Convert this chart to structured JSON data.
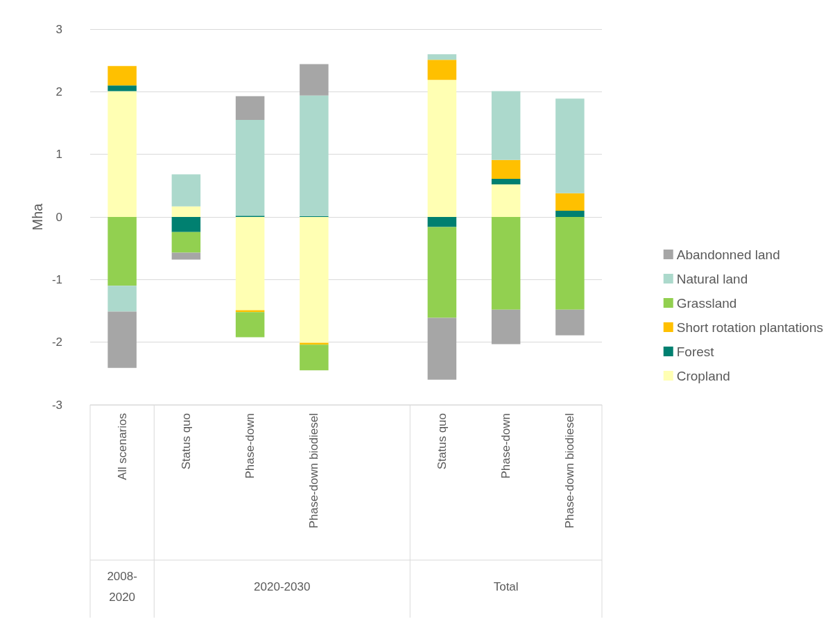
{
  "chart_data": {
    "type": "bar",
    "stacked": true,
    "ylabel": "Mha",
    "categories": [
      "All scenarios",
      "Status quo",
      "Phase-down",
      "Phase-down biodiesel",
      null,
      "Status quo",
      "Phase-down",
      "Phase-down biodiesel"
    ],
    "series": [
      {
        "name": "Cropland",
        "color": "#ffffb3",
        "values": [
          2.01,
          0.17,
          -1.49,
          -2.01,
          null,
          2.19,
          0.52,
          0
        ]
      },
      {
        "name": "Forest",
        "color": "#008070",
        "values": [
          0.09,
          -0.24,
          0.02,
          0.01,
          null,
          -0.16,
          0.09,
          0.1
        ]
      },
      {
        "name": "Short rotation plantations",
        "color": "#ffc000",
        "values": [
          0.31,
          0,
          -0.03,
          -0.03,
          null,
          0.32,
          0.3,
          0.28
        ]
      },
      {
        "name": "Grassland",
        "color": "#92d050",
        "values": [
          -1.1,
          -0.33,
          -0.4,
          -0.41,
          null,
          -1.45,
          -1.48,
          -1.48
        ]
      },
      {
        "name": "Natural land",
        "color": "#acd9cc",
        "values": [
          -0.41,
          0.51,
          1.53,
          1.93,
          null,
          0.09,
          1.1,
          1.51
        ]
      },
      {
        "name": "Abandonned land",
        "color": "#a6a6a6",
        "values": [
          -0.9,
          -0.11,
          0.38,
          0.5,
          null,
          -0.99,
          -0.55,
          -0.41
        ]
      }
    ],
    "ylim": [
      -3,
      3
    ],
    "yticks": [
      -3,
      -2,
      -1,
      0,
      1,
      2,
      3
    ],
    "grid": "y",
    "legend": "right",
    "annotations": [
      "2008-2020",
      "2020-2030",
      "Total"
    ]
  }
}
